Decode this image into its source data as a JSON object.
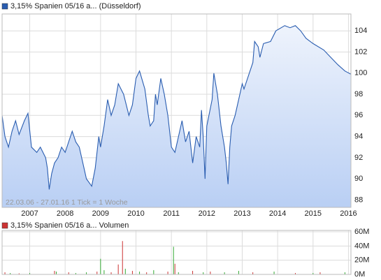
{
  "chart_data": [
    {
      "type": "area",
      "title": "3,15% Spanien 05/16 a... (Düsseldorf)",
      "color": "#2a5db0",
      "annotation": "22.03.06 - 27.01.16   1 Tick = 1 Woche",
      "xlim": [
        2006.22,
        2016.07
      ],
      "ylim": [
        87.3,
        105.6
      ],
      "xticks": [
        2007,
        2008,
        2009,
        2010,
        2011,
        2012,
        2013,
        2014,
        2015,
        2016
      ],
      "yticks": [
        88,
        90,
        92,
        94,
        96,
        98,
        100,
        102,
        104
      ],
      "grid": true,
      "x": [
        2006.22,
        2006.3,
        2006.4,
        2006.5,
        2006.6,
        2006.7,
        2006.85,
        2006.95,
        2007.05,
        2007.2,
        2007.3,
        2007.45,
        2007.5,
        2007.55,
        2007.62,
        2007.7,
        2007.8,
        2007.9,
        2008.0,
        2008.1,
        2008.2,
        2008.3,
        2008.4,
        2008.5,
        2008.6,
        2008.75,
        2008.85,
        2008.95,
        2009.0,
        2009.1,
        2009.2,
        2009.3,
        2009.4,
        2009.5,
        2009.65,
        2009.8,
        2009.9,
        2010.0,
        2010.1,
        2010.25,
        2010.35,
        2010.4,
        2010.5,
        2010.55,
        2010.6,
        2010.7,
        2010.8,
        2010.9,
        2011.0,
        2011.1,
        2011.2,
        2011.3,
        2011.4,
        2011.5,
        2011.6,
        2011.7,
        2011.8,
        2011.85,
        2011.9,
        2011.95,
        2012.0,
        2012.15,
        2012.2,
        2012.3,
        2012.4,
        2012.5,
        2012.55,
        2012.6,
        2012.65,
        2012.7,
        2012.8,
        2012.9,
        2013.0,
        2013.05,
        2013.2,
        2013.3,
        2013.35,
        2013.45,
        2013.5,
        2013.6,
        2013.8,
        2013.95,
        2014.2,
        2014.35,
        2014.5,
        2014.65,
        2014.8,
        2015.0,
        2015.3,
        2015.5,
        2015.7,
        2015.9,
        2016.07
      ],
      "values": [
        96,
        94,
        93,
        94.5,
        95.5,
        94.2,
        95.5,
        96.2,
        93,
        92.5,
        93,
        92,
        91,
        89,
        90.5,
        91.5,
        92,
        93,
        92.5,
        93.5,
        94.5,
        93.5,
        93,
        91.5,
        90,
        89.3,
        91,
        94,
        93,
        95,
        97.5,
        96,
        97,
        99,
        98,
        96,
        97,
        99.5,
        100.2,
        98.5,
        96,
        95,
        95.5,
        98,
        97,
        99.5,
        98,
        96,
        93,
        92.5,
        94,
        95.5,
        93.5,
        94.5,
        91.5,
        94,
        93,
        96.5,
        94,
        90,
        95,
        97.5,
        100,
        98,
        95,
        93,
        91.5,
        89.5,
        93,
        95,
        96,
        97.5,
        99,
        98.5,
        100,
        101,
        103,
        102.5,
        101.5,
        102.8,
        103,
        104,
        104.5,
        104.3,
        104.5,
        104,
        103.3,
        102.8,
        102.2,
        101.5,
        100.8,
        100.2,
        99.9
      ]
    },
    {
      "type": "bar",
      "title": "3,15% Spanien 05/16 a... Volumen",
      "color": "#cc3333",
      "xlim": [
        2006.22,
        2016.07
      ],
      "ylim": [
        0,
        62000000
      ],
      "yticks": [
        {
          "value": 0,
          "label": "0M"
        },
        {
          "value": 20000000,
          "label": "20M"
        },
        {
          "value": 40000000,
          "label": "40M"
        },
        {
          "value": 60000000,
          "label": "60M"
        }
      ],
      "xticks": [
        2007,
        2008,
        2009,
        2010,
        2011,
        2012,
        2013,
        2014,
        2015,
        2016
      ],
      "grid": true,
      "x": [
        2006.3,
        2006.45,
        2006.7,
        2007.0,
        2007.7,
        2007.75,
        2008.1,
        2008.3,
        2008.6,
        2008.9,
        2009.0,
        2009.1,
        2009.3,
        2009.5,
        2009.62,
        2009.7,
        2009.9,
        2010.1,
        2010.3,
        2010.5,
        2010.9,
        2011.06,
        2011.1,
        2011.2,
        2011.6,
        2011.9,
        2012.1,
        2012.5,
        2012.9,
        2013.3,
        2013.9,
        2014.5,
        2015.0,
        2015.2,
        2015.9
      ],
      "values": [
        3000000,
        2000000,
        1500000,
        2000000,
        5000000,
        4000000,
        3000000,
        2000000,
        3000000,
        4000000,
        22000000,
        6000000,
        3000000,
        14000000,
        47000000,
        8000000,
        5000000,
        4000000,
        3000000,
        6000000,
        4000000,
        39000000,
        15000000,
        3000000,
        5000000,
        3000000,
        4000000,
        3000000,
        5000000,
        3000000,
        4000000,
        2000000,
        2000000,
        3000000,
        3000000
      ],
      "bar_colors": [
        "#cc3333",
        "#33aa33",
        "#cc3333",
        "#33aa33",
        "#cc3333",
        "#33aa33",
        "#cc3333",
        "#33aa33",
        "#33aa33",
        "#cc3333",
        "#33aa33",
        "#33aa33",
        "#cc3333",
        "#cc3333",
        "#cc3333",
        "#33aa33",
        "#cc3333",
        "#33aa33",
        "#cc3333",
        "#33aa33",
        "#cc3333",
        "#33aa33",
        "#cc3333",
        "#33aa33",
        "#cc3333",
        "#33aa33",
        "#cc3333",
        "#33aa33",
        "#33aa33",
        "#cc3333",
        "#33aa33",
        "#cc3333",
        "#33aa33",
        "#cc3333",
        "#33aa33"
      ]
    }
  ]
}
